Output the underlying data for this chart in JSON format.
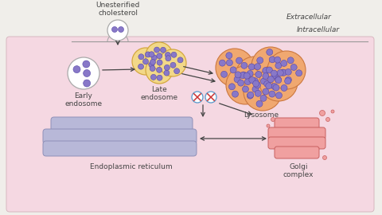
{
  "bg_extracellular": "#f0eeea",
  "bg_intracellular": "#f5d8e2",
  "line_color": "#999999",
  "text_color": "#444444",
  "arrow_color": "#444444",
  "early_endo_fill": "#ffffff",
  "early_endo_border": "#aaaaaa",
  "late_endo_fill": "#f2d888",
  "late_endo_border": "#d4a840",
  "lysosome_fill": "#f0a870",
  "lysosome_border": "#cc7840",
  "lysosome_inner_fill": "#f8c8a0",
  "er_fill": "#b8b8d8",
  "er_border": "#9090b8",
  "golgi_fill": "#f0a0a0",
  "golgi_border": "#c86060",
  "vesicle_fill": "#8878c8",
  "vesicle_border": "#5848a8",
  "label_extracellular": "Extracellular",
  "label_intracellular": "Intracellular",
  "label_cholesterol": "Unesterified\ncholesterol",
  "label_early": "Early\nendosome",
  "label_late": "Late\nendosome",
  "label_lysosome": "Lysosome",
  "label_er": "Endoplasmic reticulum",
  "label_golgi": "Golgi\ncomplex",
  "font_size": 6.5
}
